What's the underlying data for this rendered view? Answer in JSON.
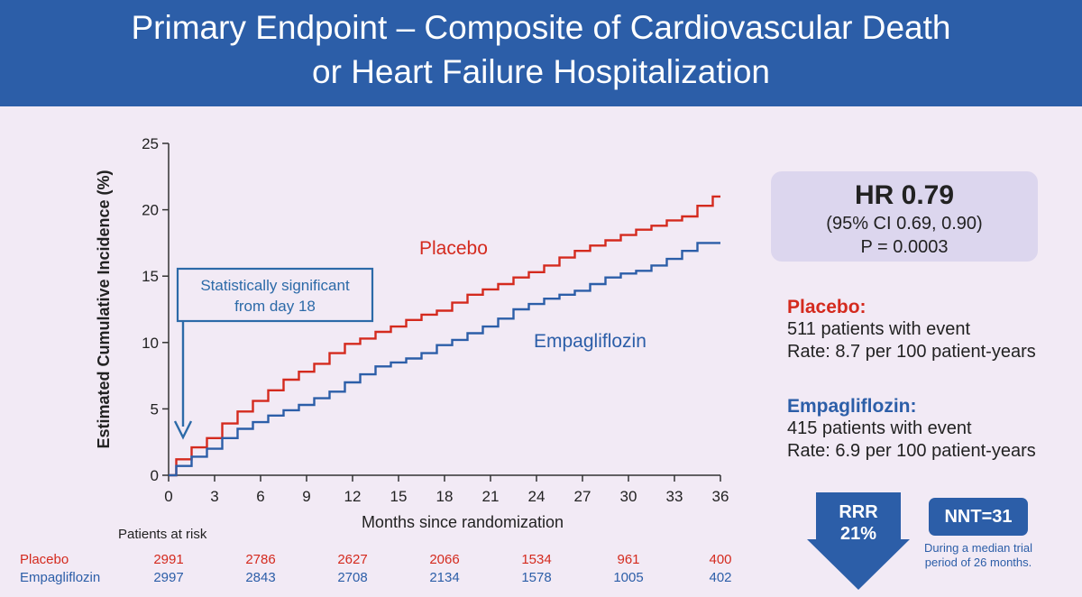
{
  "header": {
    "title_line1": "Primary Endpoint – Composite of Cardiovascular Death",
    "title_line2": "or Heart Failure Hospitalization"
  },
  "colors": {
    "header_bg": "#2c5ea8",
    "placebo": "#d42a1e",
    "empagliflozin": "#2c5ea8",
    "background": "#f2eaf5"
  },
  "chart_data": {
    "type": "line",
    "xlabel": "Months since randomization",
    "ylabel": "Estimated Cumulative Incidence (%)",
    "xlim": [
      0,
      36
    ],
    "ylim": [
      0,
      25
    ],
    "x_ticks": [
      0,
      3,
      6,
      9,
      12,
      15,
      18,
      21,
      24,
      27,
      30,
      33,
      36
    ],
    "y_ticks": [
      0,
      5,
      10,
      15,
      20,
      25
    ],
    "grid": false,
    "series": [
      {
        "name": "Placebo",
        "color": "#d42a1e",
        "x": [
          0,
          1,
          2,
          3,
          4,
          5,
          6,
          7,
          8,
          9,
          10,
          11,
          12,
          13,
          14,
          15,
          16,
          17,
          18,
          19,
          20,
          21,
          22,
          23,
          24,
          25,
          26,
          27,
          28,
          29,
          30,
          31,
          32,
          33,
          34,
          35,
          36
        ],
        "y": [
          0,
          1.2,
          2.1,
          2.8,
          3.9,
          4.8,
          5.6,
          6.4,
          7.2,
          7.8,
          8.4,
          9.2,
          9.9,
          10.3,
          10.8,
          11.2,
          11.7,
          12.1,
          12.4,
          13.0,
          13.6,
          14.0,
          14.4,
          14.9,
          15.3,
          15.8,
          16.4,
          16.9,
          17.3,
          17.7,
          18.1,
          18.5,
          18.8,
          19.2,
          19.5,
          20.3,
          21.0
        ]
      },
      {
        "name": "Empagliflozin",
        "color": "#2c5ea8",
        "x": [
          0,
          1,
          2,
          3,
          4,
          5,
          6,
          7,
          8,
          9,
          10,
          11,
          12,
          13,
          14,
          15,
          16,
          17,
          18,
          19,
          20,
          21,
          22,
          23,
          24,
          25,
          26,
          27,
          28,
          29,
          30,
          31,
          32,
          33,
          34,
          35,
          36
        ],
        "y": [
          0,
          0.7,
          1.4,
          2.0,
          2.8,
          3.5,
          4.0,
          4.5,
          4.9,
          5.3,
          5.8,
          6.3,
          7.0,
          7.6,
          8.2,
          8.5,
          8.8,
          9.2,
          9.8,
          10.2,
          10.7,
          11.2,
          11.8,
          12.5,
          12.9,
          13.3,
          13.6,
          13.9,
          14.4,
          14.9,
          15.2,
          15.4,
          15.8,
          16.3,
          16.9,
          17.5,
          17.5
        ]
      }
    ],
    "annotations": {
      "placebo_label": "Placebo",
      "empagliflozin_label": "Empagliflozin",
      "significance_box": [
        "Statistically significant",
        "from day 18"
      ]
    },
    "risk_table": {
      "title": "Patients at risk",
      "rows": [
        {
          "label": "Placebo",
          "color": "#d42a1e",
          "values": [
            "2991",
            "2786",
            "2627",
            "2066",
            "1534",
            "961",
            "400"
          ]
        },
        {
          "label": "Empagliflozin",
          "color": "#2c5ea8",
          "values": [
            "2997",
            "2843",
            "2708",
            "2134",
            "1578",
            "1005",
            "402"
          ]
        }
      ]
    }
  },
  "summary": {
    "hr": "HR 0.79",
    "ci": "(95% CI 0.69, 0.90)",
    "p": "P = 0.0003",
    "placebo": {
      "head": "Placebo:",
      "events": "511 patients with event",
      "rate": "Rate: 8.7 per 100 patient-years"
    },
    "empagliflozin": {
      "head": "Empagliflozin:",
      "events": "415 patients with event",
      "rate": "Rate: 6.9 per 100 patient-years"
    },
    "rrr_line1": "RRR",
    "rrr_line2": "21%",
    "nnt": "NNT=31",
    "nnt_note": "During a median trial period of 26 months."
  }
}
